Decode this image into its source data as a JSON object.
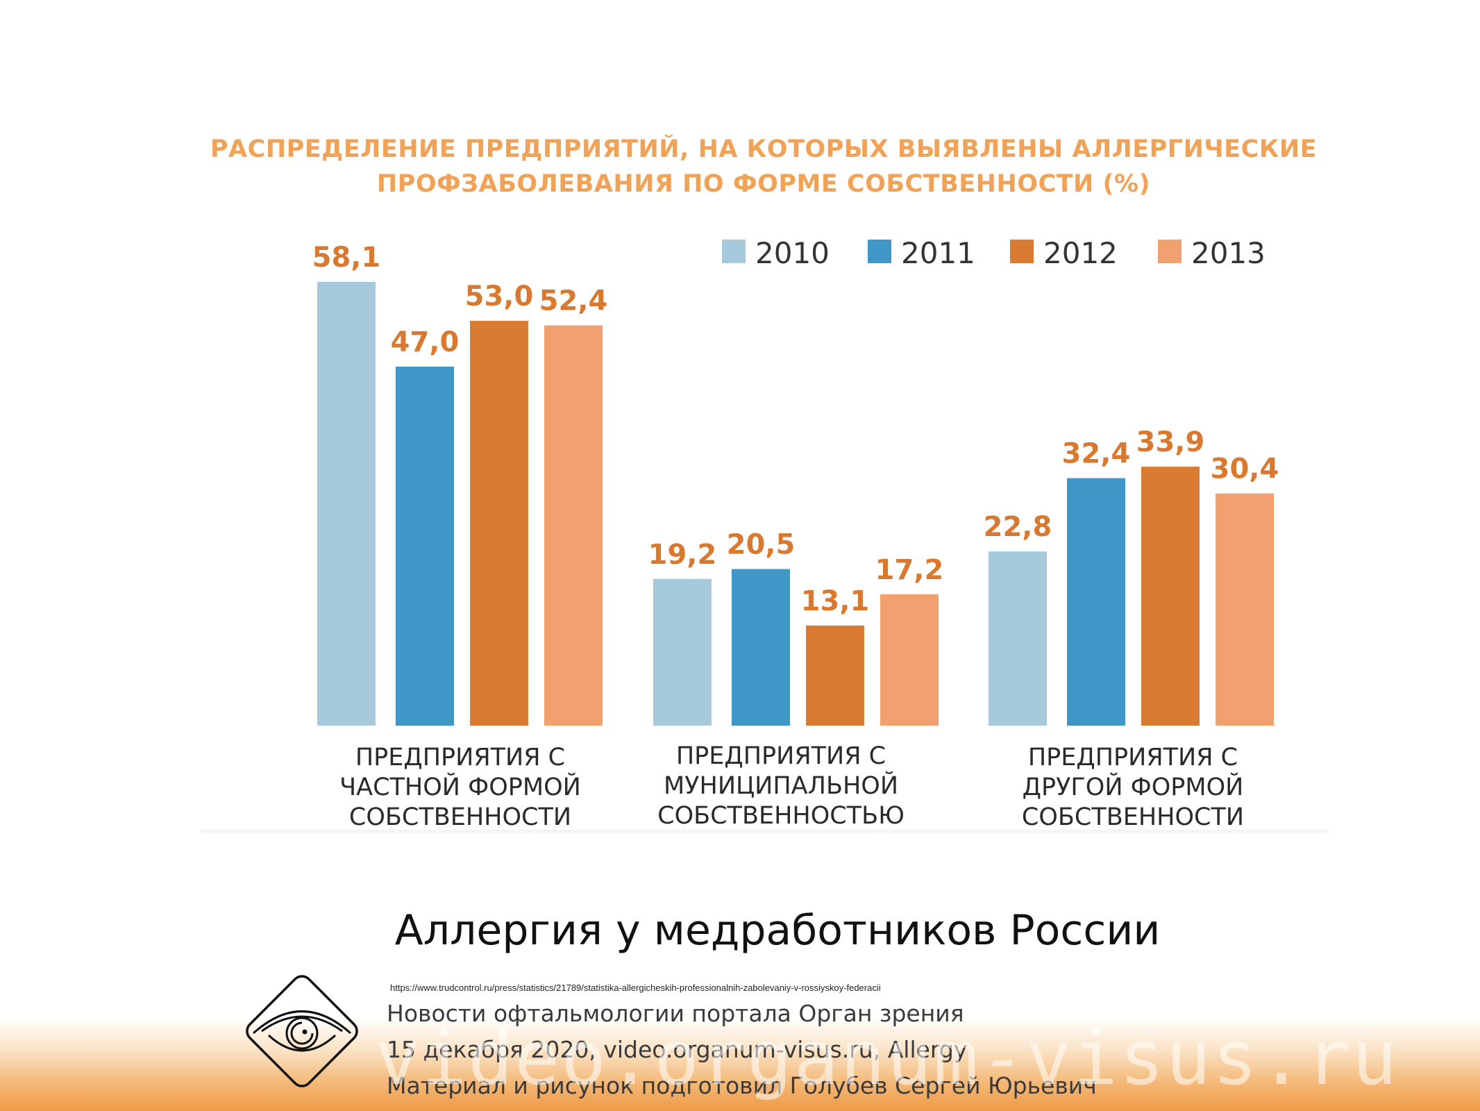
{
  "chart_data": {
    "type": "bar",
    "title": "РАСПРЕДЕЛЕНИЕ ПРЕДПРИЯТИЙ, НА КОТОРЫХ ВЫЯВЛЕНЫ АЛЛЕРГИЧЕСКИЕ ПРОФЗАБОЛЕВАНИЯ ПО ФОРМЕ СОБСТВЕННОСТИ (%)",
    "title_lines": [
      "РАСПРЕДЕЛЕНИЕ ПРЕДПРИЯТИЙ, НА КОТОРЫХ ВЫЯВЛЕНЫ АЛЛЕРГИЧЕСКИЕ",
      "ПРОФЗАБОЛЕВАНИЯ ПО ФОРМЕ СОБСТВЕННОСТИ (%)"
    ],
    "categories": [
      "ПРЕДПРИЯТИЯ С\nЧАСТНОЙ ФОРМОЙ\nСОБСТВЕННОСТИ",
      "ПРЕДПРИЯТИЯ С\nМУНИЦИПАЛЬНОЙ\nСОБСТВЕННОСТЬЮ",
      "ПРЕДПРИЯТИЯ С\nДРУГОЙ ФОРМОЙ\nСОБСТВЕННОСТИ"
    ],
    "series": [
      {
        "name": "2010",
        "color": "#a6cadc",
        "values": [
          58.1,
          19.2,
          22.8
        ],
        "labels": [
          "58,1",
          "19,2",
          "22,8"
        ]
      },
      {
        "name": "2011",
        "color": "#4096c6",
        "values": [
          47.0,
          20.5,
          32.4
        ],
        "labels": [
          "47,0",
          "20,5",
          "32,4"
        ]
      },
      {
        "name": "2012",
        "color": "#d97b33",
        "values": [
          53.0,
          13.1,
          33.9
        ],
        "labels": [
          "53,0",
          "13,1",
          "33,9"
        ]
      },
      {
        "name": "2013",
        "color": "#f1a070",
        "values": [
          52.4,
          17.2,
          30.4
        ],
        "labels": [
          "52,4",
          "17,2",
          "30,4"
        ]
      }
    ],
    "legend_position": "top-right",
    "grid": false,
    "ylim": [
      0,
      60
    ]
  },
  "slide": {
    "heading": "Аллергия у медработников России",
    "source_url": "https://www.trudcontrol.ru/press/statistics/21789/statistika-allergicheskih-professionalnih-zabolevaniy-v-rossiyskoy-federacii",
    "credits": [
      "Новости офтальмологии портала Орган зрения",
      "15 декабря 2020, video.organum-visus.ru, Allergy",
      "Материал и рисунок подготовил Голубев Сергей Юрьевич"
    ],
    "watermark": "video.organum-visus.ru",
    "logo_icon": "eye-icon"
  }
}
